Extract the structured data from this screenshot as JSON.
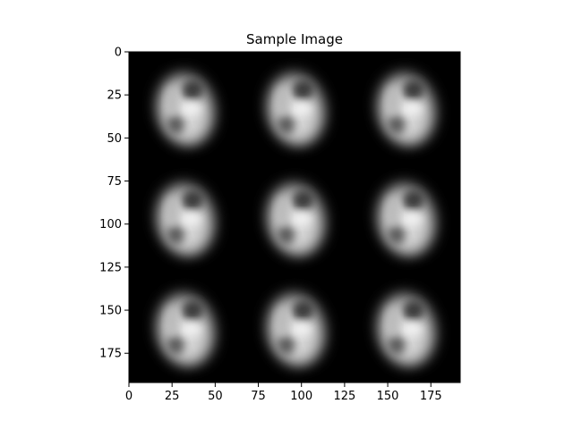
{
  "chart_data": {
    "type": "heatmap",
    "title": "Sample Image",
    "xlabel": "",
    "ylabel": "",
    "colormap": "gray",
    "colors": {
      "background": "#000000",
      "axis": "#000000"
    },
    "image_size": [
      192,
      192
    ],
    "grid": {
      "rows": 3,
      "cols": 3,
      "tile_size": 64
    },
    "tile_content": "blurred digit 8",
    "xlim": [
      0,
      192
    ],
    "ylim": [
      192,
      0
    ],
    "x_ticks": [
      0,
      25,
      50,
      75,
      100,
      125,
      150,
      175
    ],
    "y_ticks": [
      0,
      25,
      50,
      75,
      100,
      125,
      150,
      175
    ],
    "x_tick_labels": [
      "0",
      "25",
      "50",
      "75",
      "100",
      "125",
      "150",
      "175"
    ],
    "y_tick_labels": [
      "0",
      "25",
      "50",
      "75",
      "100",
      "125",
      "150",
      "175"
    ],
    "grid_lines": false,
    "legend": "none"
  }
}
